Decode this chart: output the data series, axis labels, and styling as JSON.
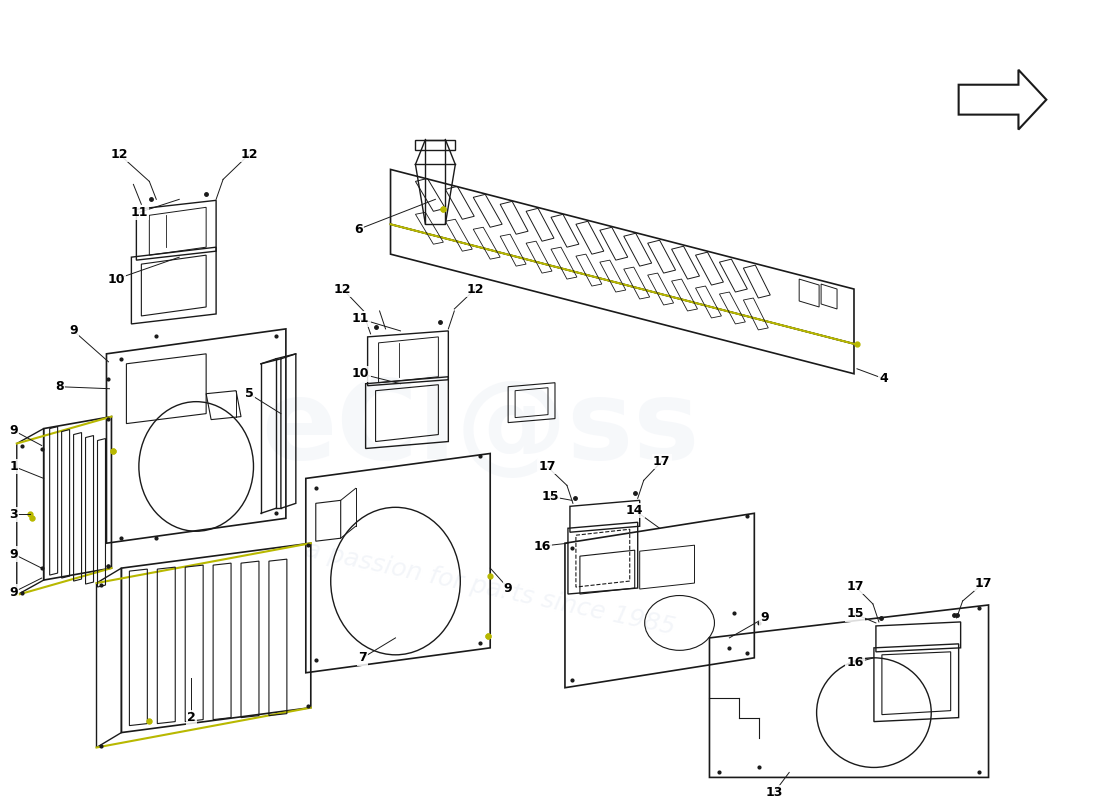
{
  "background_color": "#ffffff",
  "line_color": "#1a1a1a",
  "yellow_color": "#b8b800",
  "watermark_light": "#dde4ee",
  "fig_width": 11.0,
  "fig_height": 8.0,
  "dpi": 100
}
